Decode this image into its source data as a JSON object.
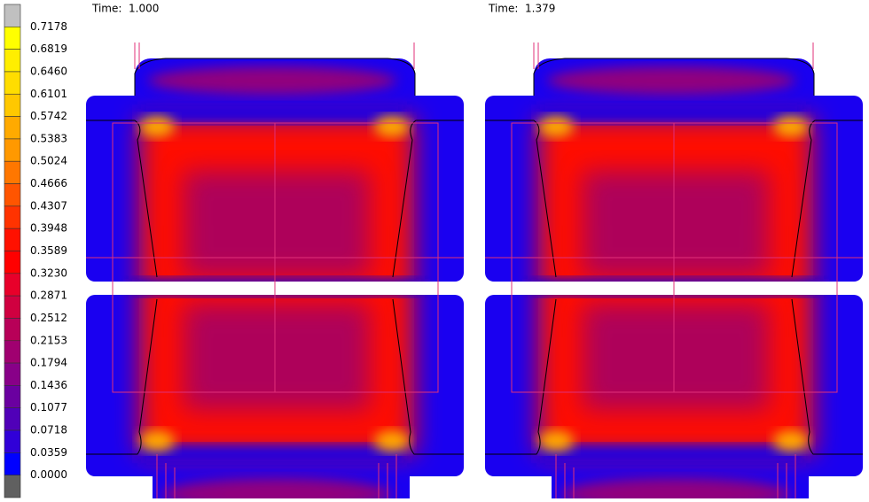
{
  "legend": {
    "labels": [
      "0.7178",
      "0.6819",
      "0.6460",
      "0.6101",
      "0.5742",
      "0.5383",
      "0.5024",
      "0.4666",
      "0.4307",
      "0.3948",
      "0.3589",
      "0.3230",
      "0.2871",
      "0.2512",
      "0.2153",
      "0.1794",
      "0.1436",
      "0.1077",
      "0.0718",
      "0.0359",
      "0.0000"
    ],
    "colors": [
      "#c0c0c0",
      "#ffff00",
      "#ffee00",
      "#ffdd00",
      "#ffc800",
      "#ffaa00",
      "#ff9900",
      "#ff7700",
      "#ff5500",
      "#ff3300",
      "#ff1100",
      "#ff0000",
      "#e8002a",
      "#d00040",
      "#b80058",
      "#a00070",
      "#880088",
      "#6a00a0",
      "#5000b8",
      "#3000d8",
      "#0000ff",
      "#606060"
    ]
  },
  "panels": [
    {
      "time": "Time:  1.000"
    },
    {
      "time": "Time:  1.379"
    }
  ]
}
